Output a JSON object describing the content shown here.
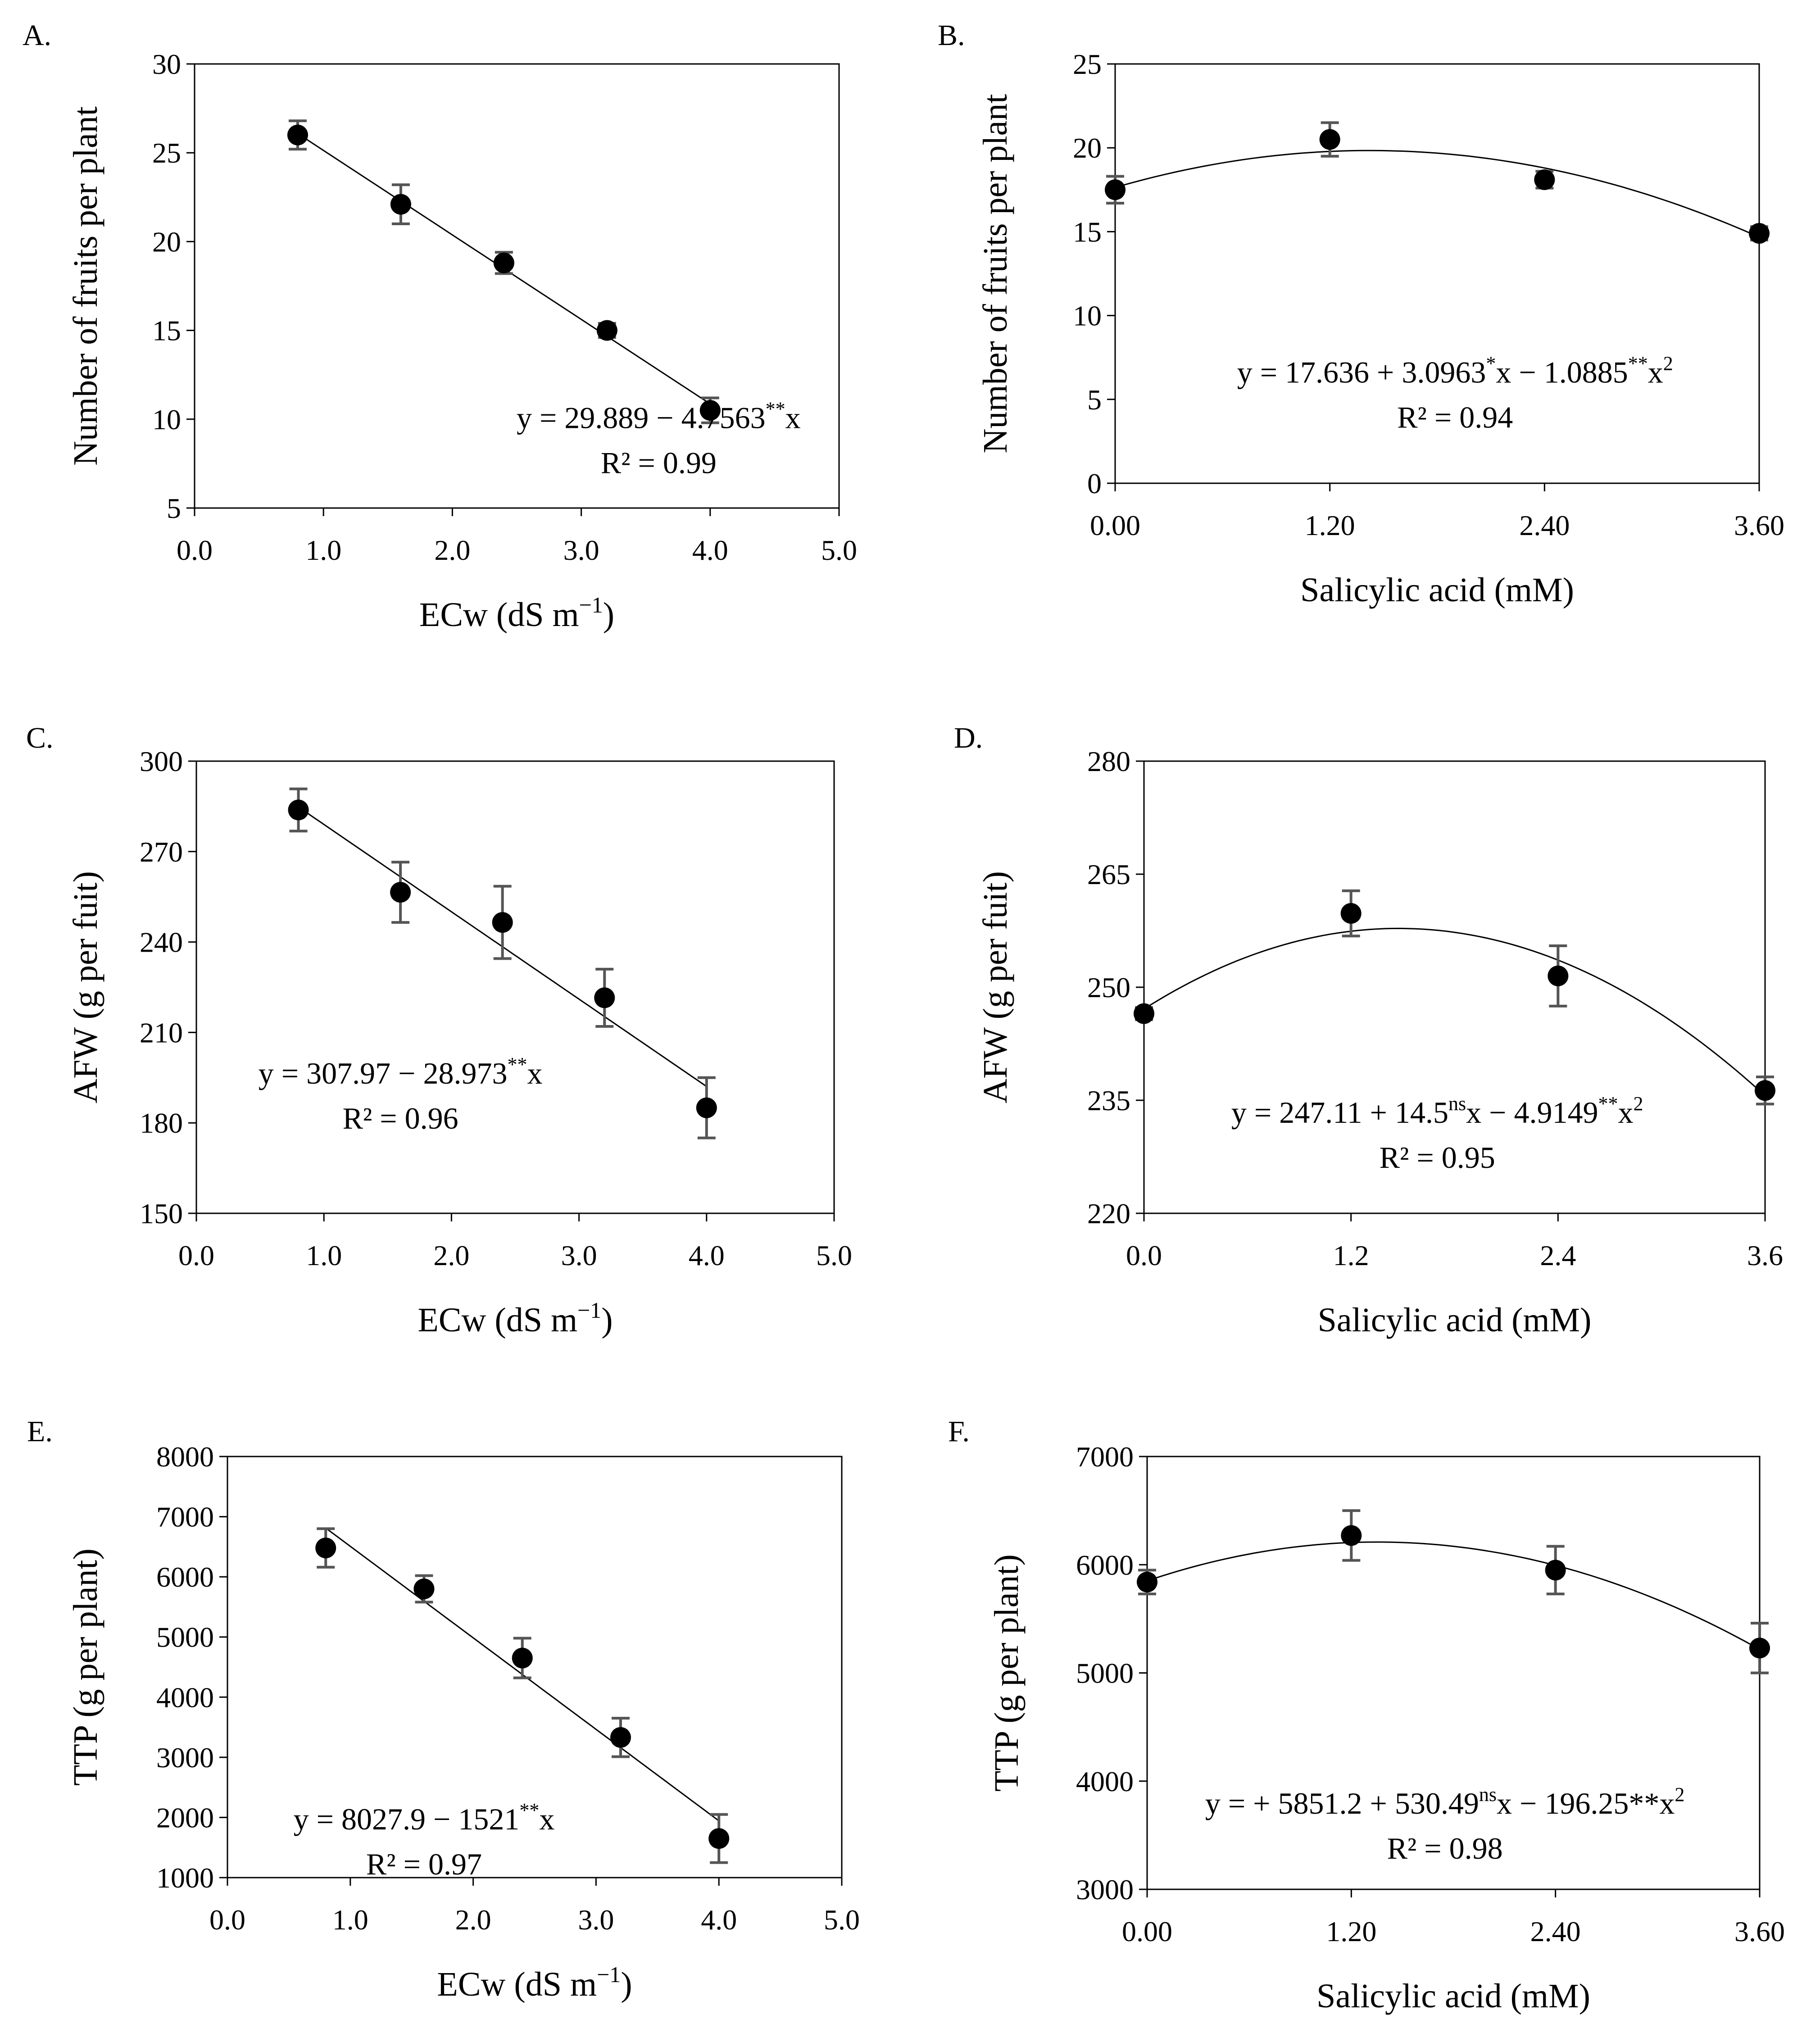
{
  "chart_data": [
    {
      "panel": "A.",
      "type": "scatter",
      "xlabel": "ECw (dS m",
      "xlabel_sup": "−1",
      "xlabel_end": ")",
      "ylabel": "Number of fruits per plant",
      "xlim": [
        0,
        5
      ],
      "ylim": [
        5,
        30
      ],
      "xticks": [
        0,
        1,
        2,
        3,
        4,
        5
      ],
      "xtick_labels": [
        "0.0",
        "1.0",
        "2.0",
        "3.0",
        "4.0",
        "5.0"
      ],
      "yticks": [
        5,
        10,
        15,
        20,
        25,
        30
      ],
      "ytick_labels": [
        "5",
        "10",
        "15",
        "20",
        "25",
        "30"
      ],
      "x": [
        0.8,
        1.6,
        2.4,
        3.2,
        4.0
      ],
      "y": [
        26.0,
        22.1,
        18.8,
        15.0,
        10.5
      ],
      "err": [
        0.8,
        1.1,
        0.6,
        0.4,
        0.7
      ],
      "fit": {
        "kind": "linear",
        "coef": [
          29.889,
          -4.7563
        ],
        "range": [
          0.8,
          4.0
        ]
      },
      "equation": {
        "parts": [
          [
            "y = 29.889 − 4.7563",
            "n"
          ],
          [
            "**",
            "sup"
          ],
          [
            "x",
            "n"
          ]
        ],
        "r2": "R² = 0.99",
        "pos": [
          3.6,
          9.5
        ]
      }
    },
    {
      "panel": "B.",
      "type": "scatter",
      "xlabel": "Salicylic acid (mM)",
      "ylabel": "Number of fruits per plant",
      "xlim": [
        0,
        3.6
      ],
      "ylim": [
        0,
        25
      ],
      "xticks": [
        0,
        1.2,
        2.4,
        3.6
      ],
      "xtick_labels": [
        "0.00",
        "1.20",
        "2.40",
        "3.60"
      ],
      "yticks": [
        0,
        5,
        10,
        15,
        20,
        25
      ],
      "ytick_labels": [
        "0",
        "5",
        "10",
        "15",
        "20",
        "25"
      ],
      "x": [
        0,
        1.2,
        2.4,
        3.6
      ],
      "y": [
        17.5,
        20.5,
        18.1,
        14.9
      ],
      "err": [
        0.8,
        1.0,
        0.5,
        0.4
      ],
      "fit": {
        "kind": "quadratic",
        "coef": [
          17.636,
          3.0963,
          -1.0885
        ],
        "range": [
          0,
          3.6
        ]
      },
      "equation": {
        "parts": [
          [
            "y = 17.636 + 3.0963",
            "n"
          ],
          [
            "*",
            "sup"
          ],
          [
            "x − 1.0885",
            "n"
          ],
          [
            "**",
            "sup"
          ],
          [
            "x",
            "n"
          ],
          [
            "2",
            "sup"
          ]
        ],
        "r2": "R² = 0.94",
        "pos": [
          1.9,
          6.0
        ]
      }
    },
    {
      "panel": "C.",
      "type": "scatter",
      "xlabel": "ECw (dS m",
      "xlabel_sup": "−1",
      "xlabel_end": ")",
      "ylabel": "AFW (g per fuit)",
      "xlim": [
        0,
        5
      ],
      "ylim": [
        150,
        300
      ],
      "xticks": [
        0,
        1,
        2,
        3,
        4,
        5
      ],
      "xtick_labels": [
        "0.0",
        "1.0",
        "2.0",
        "3.0",
        "4.0",
        "5.0"
      ],
      "yticks": [
        150,
        180,
        210,
        240,
        270,
        300
      ],
      "ytick_labels": [
        "150",
        "180",
        "210",
        "240",
        "270",
        "300"
      ],
      "x": [
        0.8,
        1.6,
        2.4,
        3.2,
        4.0
      ],
      "y": [
        283.8,
        256.5,
        246.5,
        221.5,
        185.0
      ],
      "err": [
        7.0,
        10.0,
        12.0,
        9.5,
        10.0
      ],
      "fit": {
        "kind": "linear",
        "coef": [
          307.97,
          -28.973
        ],
        "range": [
          0.8,
          4.0
        ]
      },
      "equation": {
        "parts": [
          [
            "y = 307.97 − 28.973",
            "n"
          ],
          [
            "**",
            "sup"
          ],
          [
            "x",
            "n"
          ]
        ],
        "r2": "R² = 0.96",
        "pos": [
          1.6,
          193.0
        ]
      }
    },
    {
      "panel": "D.",
      "type": "scatter",
      "xlabel": "Salicylic acid (mM)",
      "ylabel": "AFW (g per fuit)",
      "xlim": [
        0,
        3.6
      ],
      "ylim": [
        220,
        280
      ],
      "xticks": [
        0,
        1.2,
        2.4,
        3.6
      ],
      "xtick_labels": [
        "0.0",
        "1.2",
        "2.4",
        "3.6"
      ],
      "yticks": [
        220,
        235,
        250,
        265,
        280
      ],
      "ytick_labels": [
        "220",
        "235",
        "250",
        "265",
        "280"
      ],
      "x": [
        0,
        1.2,
        2.4,
        3.6
      ],
      "y": [
        246.5,
        259.8,
        251.5,
        236.3
      ],
      "err": [
        0.8,
        3.0,
        4.0,
        1.8
      ],
      "fit": {
        "kind": "quadratic",
        "coef": [
          247.11,
          14.5,
          -4.9149
        ],
        "range": [
          0,
          3.6
        ]
      },
      "equation": {
        "parts": [
          [
            "y = 247.11 + 14.5",
            "n"
          ],
          [
            "ns",
            "sup"
          ],
          [
            "x − 4.9149",
            "n"
          ],
          [
            "**",
            "sup"
          ],
          [
            "x",
            "n"
          ],
          [
            "2",
            "sup"
          ]
        ],
        "r2": "R² = 0.95",
        "pos": [
          1.7,
          232.0
        ]
      }
    },
    {
      "panel": "E.",
      "type": "scatter",
      "xlabel": "ECw (dS m",
      "xlabel_sup": "−1",
      "xlabel_end": ")",
      "ylabel": "TTP (g per plant)",
      "xlim": [
        0,
        5
      ],
      "ylim": [
        1000,
        8000
      ],
      "xticks": [
        0,
        1,
        2,
        3,
        4,
        5
      ],
      "xtick_labels": [
        "0.0",
        "1.0",
        "2.0",
        "3.0",
        "4.0",
        "5.0"
      ],
      "yticks": [
        1000,
        2000,
        3000,
        4000,
        5000,
        6000,
        7000,
        8000
      ],
      "ytick_labels": [
        "1000",
        "2000",
        "3000",
        "4000",
        "5000",
        "6000",
        "7000",
        "8000"
      ],
      "x": [
        0.8,
        1.6,
        2.4,
        3.2,
        4.0
      ],
      "y": [
        6480,
        5800,
        4650,
        3330,
        1650
      ],
      "err": [
        320,
        220,
        330,
        320,
        400
      ],
      "fit": {
        "kind": "linear",
        "coef": [
          8027.9,
          -1521
        ],
        "range": [
          0.8,
          4.0
        ]
      },
      "equation": {
        "parts": [
          [
            "y = 8027.9 − 1521",
            "n"
          ],
          [
            "**",
            "sup"
          ],
          [
            "x",
            "n"
          ]
        ],
        "r2": "R² = 0.97",
        "pos": [
          1.6,
          1800
        ]
      }
    },
    {
      "panel": "F.",
      "type": "scatter",
      "xlabel": "Salicylic acid (mM)",
      "ylabel": "TTP (g per plant)",
      "xlim": [
        0,
        3.6
      ],
      "ylim": [
        3000,
        7000
      ],
      "xticks": [
        0,
        1.2,
        2.4,
        3.6
      ],
      "xtick_labels": [
        "0.00",
        "1.20",
        "2.40",
        "3.60"
      ],
      "yticks": [
        3000,
        4000,
        5000,
        6000,
        7000
      ],
      "ytick_labels": [
        "3000",
        "4000",
        "5000",
        "6000",
        "7000"
      ],
      "x": [
        0,
        1.2,
        2.4,
        3.6
      ],
      "y": [
        5840,
        6270,
        5950,
        5230
      ],
      "err": [
        110,
        230,
        220,
        230
      ],
      "fit": {
        "kind": "quadratic",
        "coef": [
          5851.2,
          530.49,
          -196.25
        ],
        "range": [
          0,
          3.6
        ]
      },
      "equation": {
        "parts": [
          [
            "y = + 5851.2 + 530.49",
            "n"
          ],
          [
            "ns",
            "sup"
          ],
          [
            "x − 196.25**x",
            "n"
          ],
          [
            "2",
            "sup"
          ]
        ],
        "r2": "R² = 0.98",
        "pos": [
          1.75,
          3700
        ]
      }
    }
  ]
}
